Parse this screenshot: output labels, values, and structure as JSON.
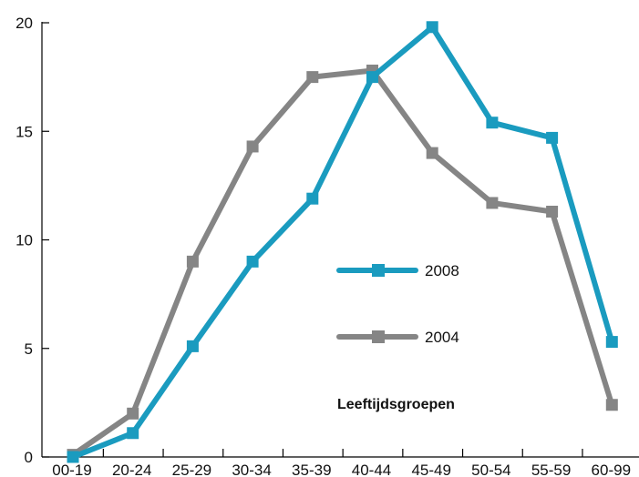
{
  "chart_data": {
    "type": "line",
    "categories": [
      "00-19",
      "20-24",
      "25-29",
      "30-34",
      "35-39",
      "40-44",
      "45-49",
      "50-54",
      "55-59",
      "60-99"
    ],
    "series": [
      {
        "name": "2008",
        "color": "#1a9bbf",
        "values": [
          0.0,
          1.1,
          5.1,
          9.0,
          11.9,
          17.5,
          19.8,
          15.4,
          14.7,
          5.3
        ]
      },
      {
        "name": "2004",
        "color": "#858585",
        "values": [
          0.1,
          2.0,
          9.0,
          14.3,
          17.5,
          17.8,
          14.0,
          11.7,
          11.3,
          2.4
        ]
      }
    ],
    "ylim": [
      0,
      20
    ],
    "yticks": [
      "0",
      "5",
      "10",
      "15",
      "20"
    ],
    "yticks_values": [
      0,
      5,
      10,
      15,
      20
    ],
    "annotation": "Leeftijdsgroepen",
    "legend_placement": "center-right",
    "grid": false,
    "marker": "square"
  }
}
